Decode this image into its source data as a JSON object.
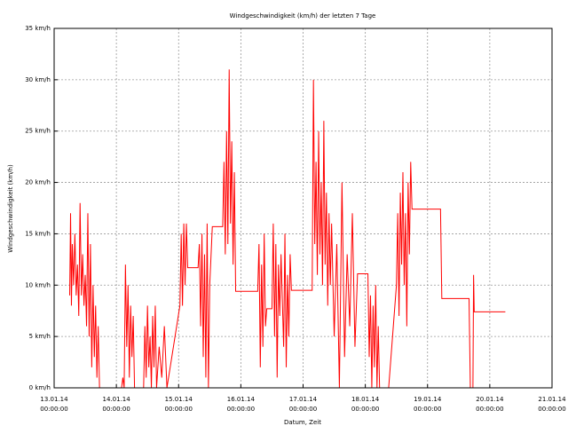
{
  "chart_data": {
    "type": "line",
    "title": "Windgeschwindigkeit (km/h) der letzten 7 Tage",
    "xlabel": "Datum, Zeit",
    "ylabel": "Windgeschwindigkeit (km/h)",
    "grid": true,
    "color": "#ff0000",
    "xlim": [
      "2014-01-13T00:00",
      "2014-01-21T00:00"
    ],
    "ylim": [
      0,
      35
    ],
    "yticks": [
      {
        "value": 0,
        "label": "0 km/h"
      },
      {
        "value": 5,
        "label": "5 km/h"
      },
      {
        "value": 10,
        "label": "10 km/h"
      },
      {
        "value": 15,
        "label": "15 km/h"
      },
      {
        "value": 20,
        "label": "20 km/h"
      },
      {
        "value": 25,
        "label": "25 km/h"
      },
      {
        "value": 30,
        "label": "30 km/h"
      },
      {
        "value": 35,
        "label": "35 km/h"
      }
    ],
    "xticks": [
      {
        "value": "2014-01-13T00:00",
        "label": [
          "13.01.14",
          "00:00:00"
        ]
      },
      {
        "value": "2014-01-14T00:00",
        "label": [
          "14.01.14",
          "00:00:00"
        ]
      },
      {
        "value": "2014-01-15T00:00",
        "label": [
          "15.01.14",
          "00:00:00"
        ]
      },
      {
        "value": "2014-01-16T00:00",
        "label": [
          "16.01.14",
          "00:00:00"
        ]
      },
      {
        "value": "2014-01-17T00:00",
        "label": [
          "17.01.14",
          "00:00:00"
        ]
      },
      {
        "value": "2014-01-18T00:00",
        "label": [
          "18.01.14",
          "00:00:00"
        ]
      },
      {
        "value": "2014-01-19T00:00",
        "label": [
          "19.01.14",
          "00:00:00"
        ]
      },
      {
        "value": "2014-01-20T00:00",
        "label": [
          "20.01.14",
          "00:00:00"
        ]
      },
      {
        "value": "2014-01-21T00:00",
        "label": [
          "21.01.14",
          "00:00:00"
        ]
      }
    ],
    "x": [
      "2014-01-13T06:00",
      "2014-01-13T06:20",
      "2014-01-13T06:40",
      "2014-01-13T07:00",
      "2014-01-13T07:30",
      "2014-01-13T08:00",
      "2014-01-13T08:30",
      "2014-01-13T09:00",
      "2014-01-13T09:30",
      "2014-01-13T10:00",
      "2014-01-13T10:30",
      "2014-01-13T11:00",
      "2014-01-13T11:30",
      "2014-01-13T12:00",
      "2014-01-13T12:30",
      "2014-01-13T13:00",
      "2014-01-13T13:30",
      "2014-01-13T14:00",
      "2014-01-13T14:30",
      "2014-01-13T15:00",
      "2014-01-13T15:30",
      "2014-01-13T16:00",
      "2014-01-13T16:30",
      "2014-01-13T17:00",
      "2014-01-13T17:30",
      "2014-01-14T02:00",
      "2014-01-14T02:30",
      "2014-01-14T03:00",
      "2014-01-14T03:30",
      "2014-01-14T04:00",
      "2014-01-14T04:30",
      "2014-01-14T05:00",
      "2014-01-14T05:30",
      "2014-01-14T06:00",
      "2014-01-14T06:30",
      "2014-01-14T07:00",
      "2014-01-14T10:30",
      "2014-01-14T11:00",
      "2014-01-14T11:30",
      "2014-01-14T12:00",
      "2014-01-14T12:30",
      "2014-01-14T13:00",
      "2014-01-14T13:30",
      "2014-01-14T14:00",
      "2014-01-14T14:30",
      "2014-01-14T15:00",
      "2014-01-14T15:30",
      "2014-01-14T16:30",
      "2014-01-14T17:30",
      "2014-01-14T18:30",
      "2014-01-14T19:30",
      "2014-01-15T00:30",
      "2014-01-15T01:00",
      "2014-01-15T01:30",
      "2014-01-15T02:00",
      "2014-01-15T02:30",
      "2014-01-15T03:00",
      "2014-01-15T03:30",
      "2014-01-15T07:30",
      "2014-01-15T08:00",
      "2014-01-15T08:30",
      "2014-01-15T09:00",
      "2014-01-15T09:30",
      "2014-01-15T10:00",
      "2014-01-15T10:30",
      "2014-01-15T11:00",
      "2014-01-15T11:30",
      "2014-01-15T12:00",
      "2014-01-15T13:00",
      "2014-01-15T17:00",
      "2014-01-15T17:30",
      "2014-01-15T18:00",
      "2014-01-15T18:30",
      "2014-01-15T19:00",
      "2014-01-15T19:30",
      "2014-01-15T20:00",
      "2014-01-15T20:30",
      "2014-01-15T21:00",
      "2014-01-15T21:30",
      "2014-01-15T22:00",
      "2014-01-16T06:30",
      "2014-01-16T07:00",
      "2014-01-16T07:30",
      "2014-01-16T08:00",
      "2014-01-16T08:30",
      "2014-01-16T09:00",
      "2014-01-16T09:30",
      "2014-01-16T10:00",
      "2014-01-16T12:00",
      "2014-01-16T12:30",
      "2014-01-16T13:00",
      "2014-01-16T13:30",
      "2014-01-16T14:00",
      "2014-01-16T14:30",
      "2014-01-16T15:00",
      "2014-01-16T15:30",
      "2014-01-16T16:30",
      "2014-01-16T17:00",
      "2014-01-16T17:30",
      "2014-01-16T18:00",
      "2014-01-16T18:30",
      "2014-01-16T19:00",
      "2014-01-16T19:30",
      "2014-01-17T03:30",
      "2014-01-17T04:00",
      "2014-01-17T04:30",
      "2014-01-17T05:00",
      "2014-01-17T05:30",
      "2014-01-17T06:00",
      "2014-01-17T06:30",
      "2014-01-17T07:00",
      "2014-01-17T07:30",
      "2014-01-17T08:00",
      "2014-01-17T08:30",
      "2014-01-17T09:00",
      "2014-01-17T09:30",
      "2014-01-17T10:00",
      "2014-01-17T10:30",
      "2014-01-17T11:00",
      "2014-01-17T12:00",
      "2014-01-17T13:00",
      "2014-01-17T14:00",
      "2014-01-17T15:00",
      "2014-01-17T16:00",
      "2014-01-17T17:00",
      "2014-01-17T18:00",
      "2014-01-17T19:00",
      "2014-01-17T20:00",
      "2014-01-17T21:00",
      "2014-01-18T01:00",
      "2014-01-18T01:30",
      "2014-01-18T02:00",
      "2014-01-18T02:30",
      "2014-01-18T03:00",
      "2014-01-18T03:30",
      "2014-01-18T04:00",
      "2014-01-18T04:30",
      "2014-01-18T05:00",
      "2014-01-18T05:30",
      "2014-01-18T09:00",
      "2014-01-18T12:00",
      "2014-01-18T12:30",
      "2014-01-18T13:00",
      "2014-01-18T13:30",
      "2014-01-18T14:00",
      "2014-01-18T14:30",
      "2014-01-18T15:00",
      "2014-01-18T15:30",
      "2014-01-18T16:00",
      "2014-01-18T16:30",
      "2014-01-18T17:00",
      "2014-01-18T17:30",
      "2014-01-18T18:00",
      "2014-01-19T05:00",
      "2014-01-19T05:30",
      "2014-01-19T16:00",
      "2014-01-19T16:30",
      "2014-01-19T17:30",
      "2014-01-19T17:45",
      "2014-01-19T18:00",
      "2014-01-20T06:00"
    ],
    "values": [
      9,
      17,
      8,
      14,
      10,
      15,
      9,
      12,
      7,
      18,
      9,
      13,
      8,
      11,
      6,
      17,
      5,
      14,
      2,
      10,
      3,
      8,
      1,
      6,
      0,
      0,
      1,
      0,
      12,
      4,
      10,
      1,
      8,
      3,
      7,
      0,
      0,
      6,
      1,
      8,
      2,
      5,
      0,
      7,
      2,
      8,
      0,
      4,
      1,
      6,
      0,
      8,
      15,
      8,
      16,
      10,
      16,
      11.7,
      11.7,
      14,
      6,
      15,
      3,
      13,
      1,
      16,
      0,
      10,
      15.7,
      15.7,
      22,
      13,
      25,
      14,
      31,
      16,
      24,
      12,
      21,
      9.4,
      9.4,
      14,
      2,
      12,
      4,
      15,
      6,
      7.7,
      7.7,
      16,
      5,
      14,
      1,
      12,
      7,
      13,
      4,
      15,
      2,
      11,
      5,
      13,
      9.5,
      9.5,
      30,
      14,
      22,
      11,
      25,
      13,
      20,
      10,
      26,
      12,
      19,
      8,
      17,
      10,
      16,
      5,
      14,
      0,
      20,
      3,
      13,
      6,
      17,
      4,
      11.1,
      11.1,
      3,
      9,
      0,
      8,
      2,
      10,
      0,
      6,
      0,
      0,
      10,
      17,
      7,
      19,
      12,
      21,
      10,
      17,
      6,
      20,
      13,
      22,
      17.4,
      17.4,
      8.7,
      8.7,
      0,
      0,
      11,
      7.4,
      7.4
    ]
  }
}
